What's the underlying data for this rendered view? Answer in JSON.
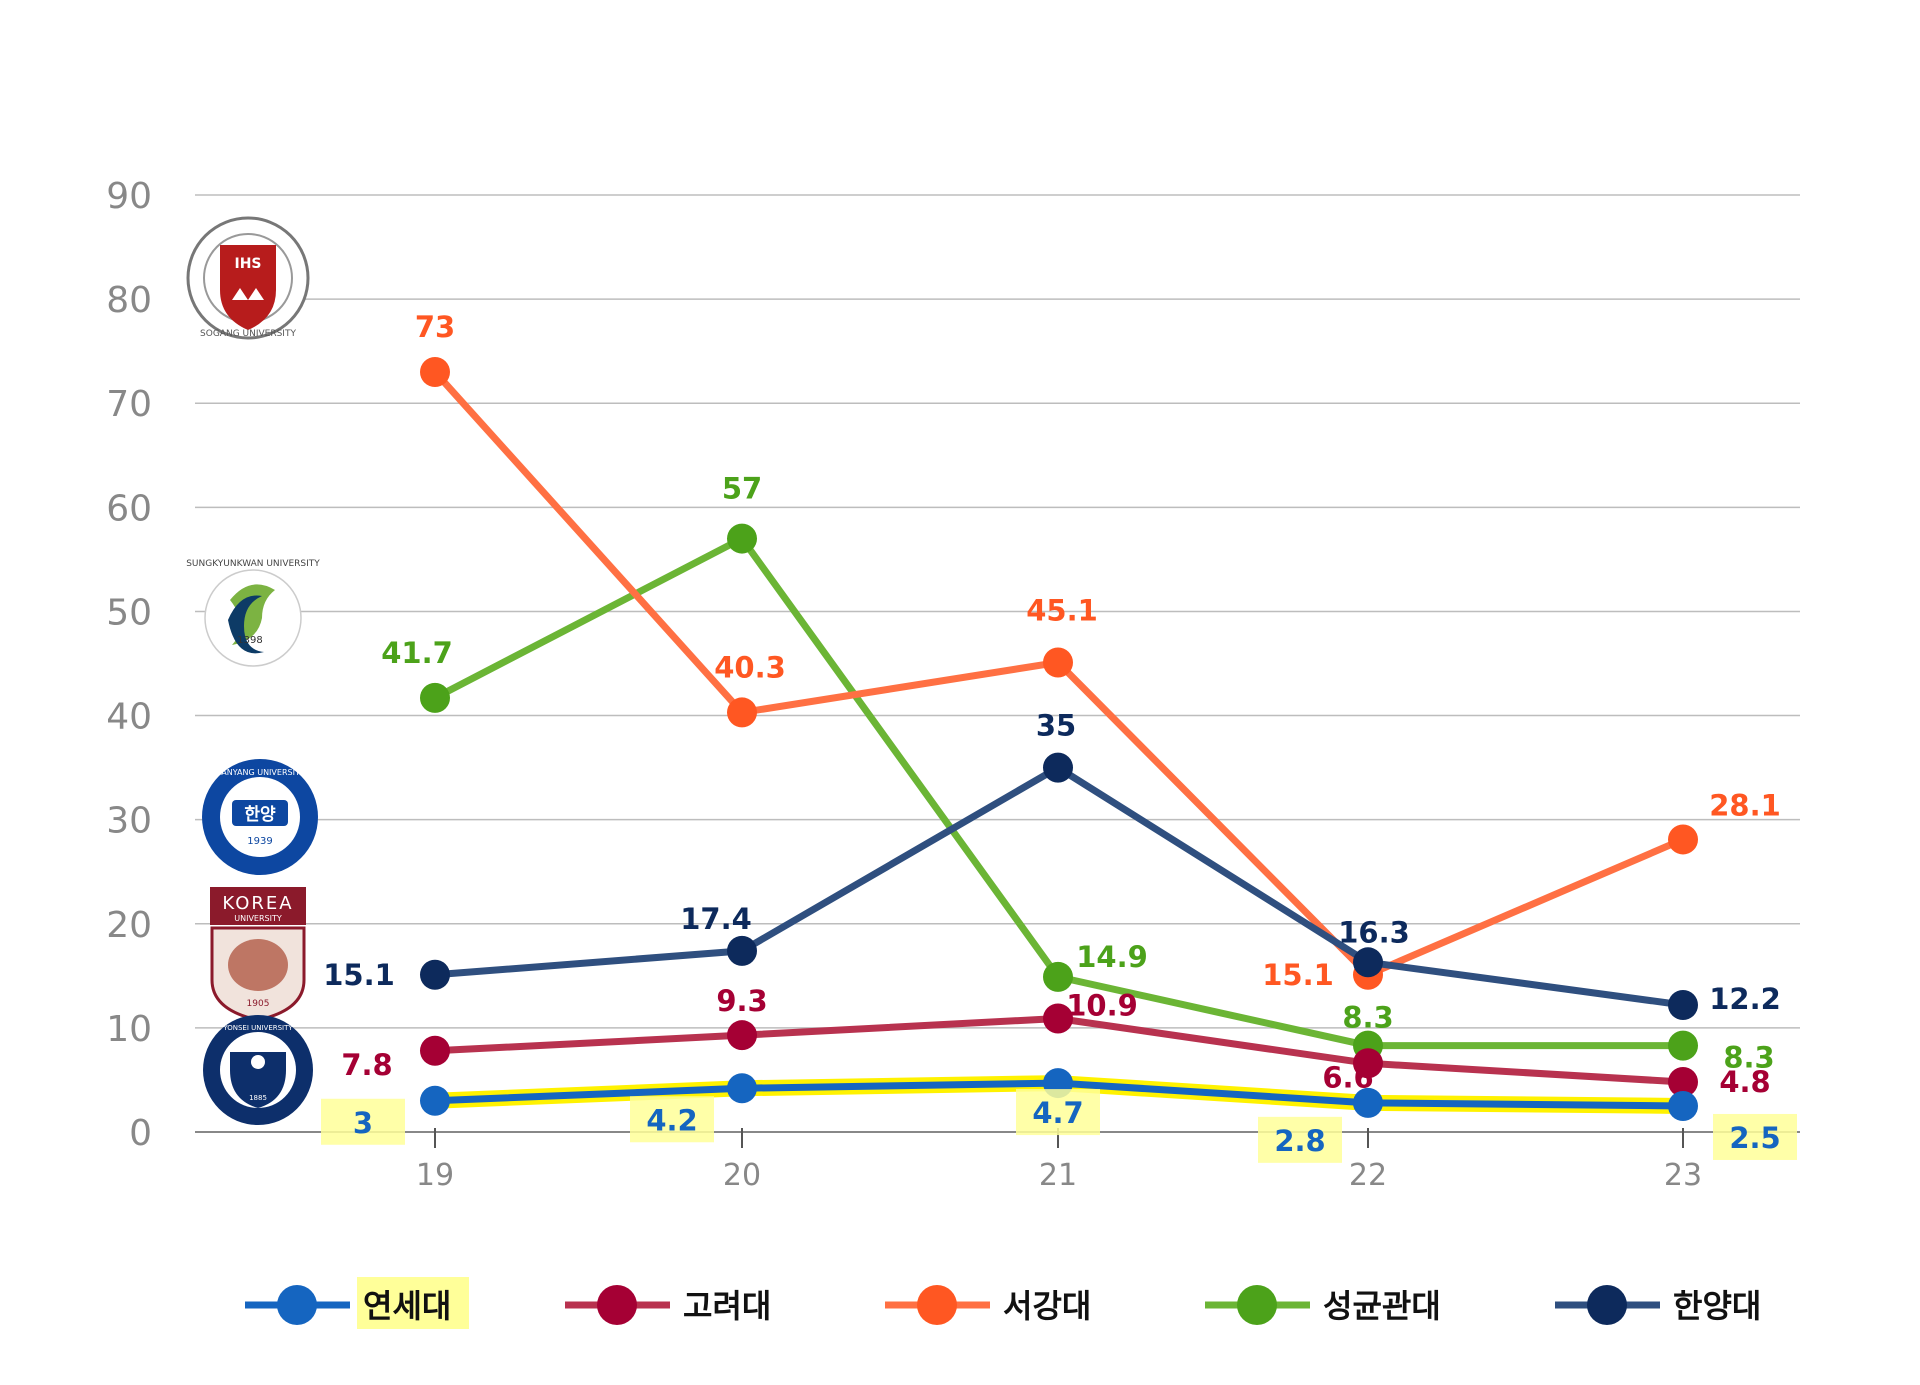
{
  "chart_data": {
    "type": "line",
    "categories": [
      "19",
      "20",
      "21",
      "22",
      "23"
    ],
    "ylim": [
      0,
      90
    ],
    "yticks": [
      "0",
      "10",
      "20",
      "30",
      "40",
      "50",
      "60",
      "70",
      "80",
      "90"
    ],
    "grid": true,
    "legend_position": "bottom",
    "series": [
      {
        "name": "연세대",
        "color": "#1565c0",
        "highlight": "#fff200",
        "values": [
          3,
          4.2,
          4.7,
          2.8,
          2.5
        ],
        "labels": [
          "3",
          "4.2",
          "4.7",
          "2.8",
          "2.5"
        ]
      },
      {
        "name": "고려대",
        "color": "#b8324f",
        "marker": "#a50034",
        "values": [
          7.8,
          9.3,
          10.9,
          6.6,
          4.8
        ],
        "labels": [
          "7.8",
          "9.3",
          "10.9",
          "6.6",
          "4.8"
        ]
      },
      {
        "name": "서강대",
        "color": "#ff7043",
        "marker": "#ff5722",
        "values": [
          73,
          40.3,
          45.1,
          15.1,
          28.1
        ],
        "labels": [
          "73",
          "40.3",
          "45.1",
          "15.1",
          "28.1"
        ]
      },
      {
        "name": "성균관대",
        "color": "#6bb535",
        "marker": "#4ca21a",
        "values": [
          41.7,
          57,
          14.9,
          8.3,
          8.3
        ],
        "labels": [
          "41.7",
          "57",
          "14.9",
          "8.3",
          "8.3"
        ]
      },
      {
        "name": "한양대",
        "color": "#2f4f7f",
        "marker": "#0d2a5c",
        "values": [
          15.1,
          17.4,
          35,
          16.3,
          12.2
        ],
        "labels": [
          "15.1",
          "17.4",
          "35",
          "16.3",
          "12.2"
        ]
      }
    ]
  },
  "logos": [
    {
      "name": "sogang-university-logo",
      "text": "SOGANG UNIVERSITY",
      "inner": "IHS",
      "color": "#b71c1c"
    },
    {
      "name": "sungkyunkwan-university-logo",
      "text": "SUNGKYUNKWAN UNIVERSITY",
      "inner": "1398",
      "color": "#0d3b66"
    },
    {
      "name": "hanyang-university-logo",
      "text": "HANYANG UNIVERSITY",
      "inner": "한양",
      "year": "1939",
      "color": "#0d47a1"
    },
    {
      "name": "korea-university-logo",
      "text": "KOREA",
      "sub": "UNIVERSITY",
      "year": "1905",
      "color": "#8b1a2b"
    },
    {
      "name": "yonsei-university-logo",
      "text": "YONSEI UNIVERSITY",
      "year": "1885",
      "color": "#0d2f6b"
    }
  ]
}
